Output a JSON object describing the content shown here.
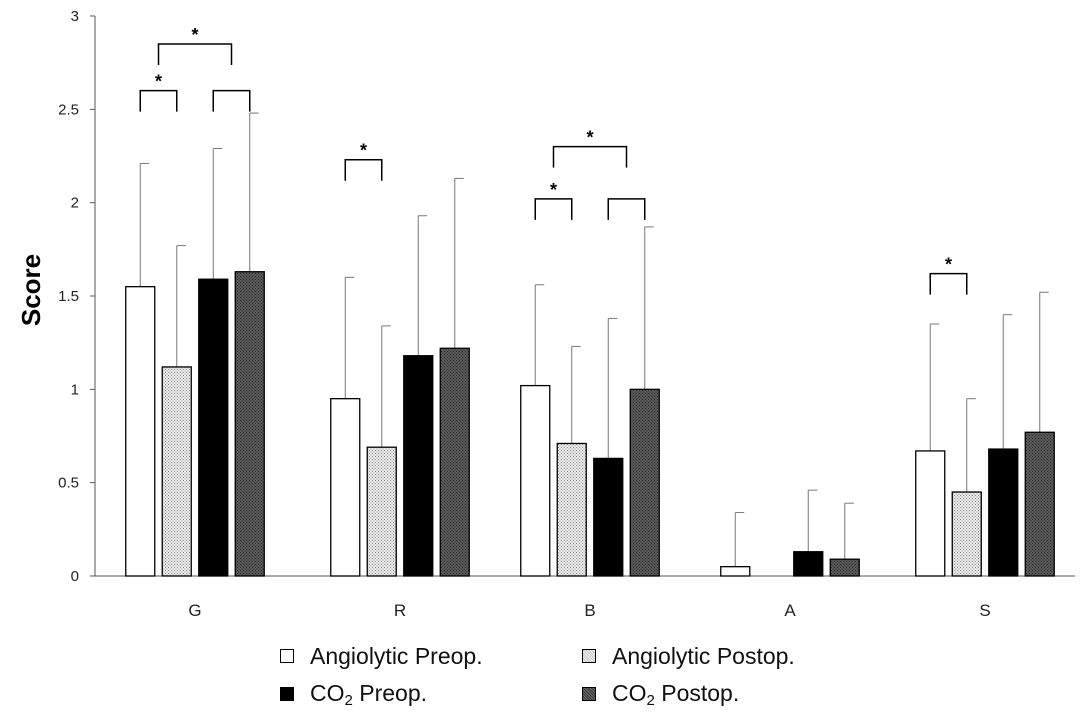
{
  "chart_data": {
    "type": "bar",
    "ylabel": "Score",
    "xlabel": "",
    "ylim": [
      0,
      3
    ],
    "yticks": [
      "0",
      "0.5",
      "1",
      "1.5",
      "2",
      "2.5",
      "3"
    ],
    "grid": false,
    "legend_position": "bottom",
    "categories": [
      "G",
      "R",
      "B",
      "A",
      "S"
    ],
    "series": [
      {
        "name": "Angiolytic Preop.",
        "fill": "white",
        "color": "#ffffff",
        "values": [
          1.55,
          0.95,
          1.02,
          0.05,
          0.67
        ],
        "error": [
          0.66,
          0.65,
          0.54,
          0.29,
          0.68
        ]
      },
      {
        "name": "Angiolytic Postop.",
        "fill": "dotted",
        "color": "#d9d9d9",
        "values": [
          1.12,
          0.69,
          0.71,
          0.0,
          0.45
        ],
        "error": [
          0.65,
          0.65,
          0.52,
          0.0,
          0.5
        ]
      },
      {
        "name": "CO2 Preop.",
        "fill": "black",
        "color": "#000000",
        "values": [
          1.59,
          1.18,
          0.63,
          0.13,
          0.68
        ],
        "error": [
          0.7,
          0.75,
          0.75,
          0.33,
          0.72
        ]
      },
      {
        "name": "CO2 Postop.",
        "fill": "dark",
        "color": "#4a4a4a",
        "values": [
          1.63,
          1.22,
          1.0,
          0.09,
          0.77
        ],
        "error": [
          0.85,
          0.91,
          0.87,
          0.3,
          0.75
        ]
      }
    ],
    "significance": [
      {
        "category": "G",
        "from": 0,
        "to": 1,
        "level": 0,
        "star": "*"
      },
      {
        "category": "G",
        "from": 2,
        "to": 3,
        "level": 0,
        "star": ""
      },
      {
        "category": "G",
        "from": 0.5,
        "to": 2.5,
        "level": 1,
        "star": "*"
      },
      {
        "category": "R",
        "from": 0,
        "to": 1,
        "level": 0,
        "star": "*"
      },
      {
        "category": "B",
        "from": 0,
        "to": 1,
        "level": 0,
        "star": "*"
      },
      {
        "category": "B",
        "from": 2,
        "to": 3,
        "level": 0,
        "star": ""
      },
      {
        "category": "B",
        "from": 0.5,
        "to": 2.5,
        "level": 1,
        "star": "*"
      },
      {
        "category": "S",
        "from": 0,
        "to": 1,
        "level": 0,
        "star": "*"
      }
    ]
  },
  "legend": {
    "items": [
      {
        "prefix": "Angiolytic Preop.",
        "sub": "",
        "suffix": ""
      },
      {
        "prefix": "Angiolytic Postop.",
        "sub": "",
        "suffix": ""
      },
      {
        "prefix": "CO",
        "sub": "2",
        "suffix": " Preop."
      },
      {
        "prefix": "CO",
        "sub": "2",
        "suffix": " Postop."
      }
    ]
  }
}
